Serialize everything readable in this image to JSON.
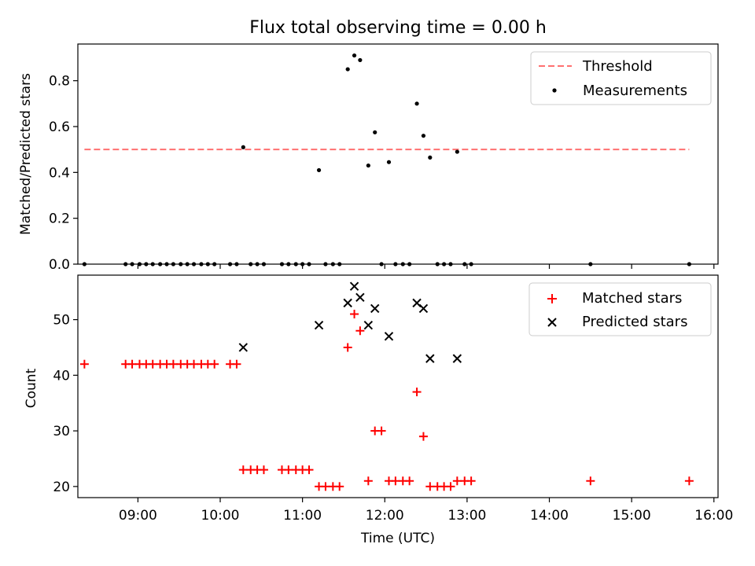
{
  "colors": {
    "threshold": "#ff7070",
    "measurement": "#000000",
    "matched": "#ff0000",
    "predicted": "#000000",
    "axis": "#000000",
    "legend_border": "#cccccc"
  },
  "chart_data": [
    {
      "type": "scatter",
      "title": "Flux total observing time = 0.00 h",
      "xlabel": "",
      "ylabel": "Matched/Predicted stars",
      "xlim": [
        8.27,
        16.05
      ],
      "ylim": [
        0.0,
        0.96
      ],
      "yticks": [
        0.0,
        0.2,
        0.4,
        0.6,
        0.8
      ],
      "ytick_labels": [
        "0.0",
        "0.2",
        "0.4",
        "0.6",
        "0.8"
      ],
      "threshold": {
        "name": "Threshold",
        "y": 0.5,
        "x_range": [
          8.35,
          15.7
        ]
      },
      "series": [
        {
          "name": "Measurements",
          "points": [
            [
              8.35,
              0.0
            ],
            [
              8.85,
              0.0
            ],
            [
              8.93,
              0.0
            ],
            [
              9.02,
              0.0
            ],
            [
              9.1,
              0.0
            ],
            [
              9.18,
              0.0
            ],
            [
              9.27,
              0.0
            ],
            [
              9.35,
              0.0
            ],
            [
              9.43,
              0.0
            ],
            [
              9.52,
              0.0
            ],
            [
              9.6,
              0.0
            ],
            [
              9.68,
              0.0
            ],
            [
              9.77,
              0.0
            ],
            [
              9.85,
              0.0
            ],
            [
              9.93,
              0.0
            ],
            [
              10.12,
              0.0
            ],
            [
              10.2,
              0.0
            ],
            [
              10.28,
              0.51
            ],
            [
              10.37,
              0.0
            ],
            [
              10.45,
              0.0
            ],
            [
              10.53,
              0.0
            ],
            [
              10.75,
              0.0
            ],
            [
              10.83,
              0.0
            ],
            [
              10.92,
              0.0
            ],
            [
              11.0,
              0.0
            ],
            [
              11.08,
              0.0
            ],
            [
              11.2,
              0.41
            ],
            [
              11.28,
              0.0
            ],
            [
              11.37,
              0.0
            ],
            [
              11.45,
              0.0
            ],
            [
              11.55,
              0.85
            ],
            [
              11.63,
              0.91
            ],
            [
              11.7,
              0.89
            ],
            [
              11.8,
              0.43
            ],
            [
              11.88,
              0.575
            ],
            [
              11.96,
              0.0
            ],
            [
              12.05,
              0.445
            ],
            [
              12.13,
              0.0
            ],
            [
              12.22,
              0.0
            ],
            [
              12.3,
              0.0
            ],
            [
              12.39,
              0.7
            ],
            [
              12.47,
              0.56
            ],
            [
              12.55,
              0.465
            ],
            [
              12.64,
              0.0
            ],
            [
              12.72,
              0.0
            ],
            [
              12.8,
              0.0
            ],
            [
              12.88,
              0.49
            ],
            [
              12.97,
              0.0
            ],
            [
              13.05,
              0.0
            ],
            [
              14.5,
              0.0
            ],
            [
              15.7,
              0.0
            ]
          ]
        }
      ],
      "legend": {
        "location": "upper right",
        "entries": [
          "Threshold",
          "Measurements"
        ]
      }
    },
    {
      "type": "scatter",
      "title": "",
      "xlabel": "Time (UTC)",
      "ylabel": "Count",
      "xlim": [
        8.27,
        16.05
      ],
      "ylim": [
        18.0,
        58.0
      ],
      "xticks": [
        9,
        10,
        11,
        12,
        13,
        14,
        15,
        16
      ],
      "xtick_labels": [
        "09:00",
        "10:00",
        "11:00",
        "12:00",
        "13:00",
        "14:00",
        "15:00",
        "16:00"
      ],
      "yticks": [
        20,
        30,
        40,
        50
      ],
      "ytick_labels": [
        "20",
        "30",
        "40",
        "50"
      ],
      "series": [
        {
          "name": "Matched stars",
          "marker": "+",
          "points": [
            [
              8.35,
              42
            ],
            [
              8.85,
              42
            ],
            [
              8.93,
              42
            ],
            [
              9.02,
              42
            ],
            [
              9.1,
              42
            ],
            [
              9.18,
              42
            ],
            [
              9.27,
              42
            ],
            [
              9.35,
              42
            ],
            [
              9.43,
              42
            ],
            [
              9.52,
              42
            ],
            [
              9.6,
              42
            ],
            [
              9.68,
              42
            ],
            [
              9.77,
              42
            ],
            [
              9.85,
              42
            ],
            [
              9.93,
              42
            ],
            [
              10.12,
              42
            ],
            [
              10.2,
              42
            ],
            [
              10.28,
              23
            ],
            [
              10.37,
              23
            ],
            [
              10.45,
              23
            ],
            [
              10.53,
              23
            ],
            [
              10.75,
              23
            ],
            [
              10.83,
              23
            ],
            [
              10.92,
              23
            ],
            [
              11.0,
              23
            ],
            [
              11.08,
              23
            ],
            [
              11.2,
              20
            ],
            [
              11.28,
              20
            ],
            [
              11.37,
              20
            ],
            [
              11.45,
              20
            ],
            [
              11.55,
              45
            ],
            [
              11.63,
              51
            ],
            [
              11.7,
              48
            ],
            [
              11.8,
              21
            ],
            [
              11.88,
              30
            ],
            [
              11.96,
              30
            ],
            [
              12.05,
              21
            ],
            [
              12.13,
              21
            ],
            [
              12.22,
              21
            ],
            [
              12.3,
              21
            ],
            [
              12.39,
              37
            ],
            [
              12.47,
              29
            ],
            [
              12.55,
              20
            ],
            [
              12.64,
              20
            ],
            [
              12.72,
              20
            ],
            [
              12.8,
              20
            ],
            [
              12.88,
              21
            ],
            [
              12.97,
              21
            ],
            [
              13.05,
              21
            ],
            [
              14.5,
              21
            ],
            [
              15.7,
              21
            ]
          ]
        },
        {
          "name": "Predicted stars",
          "marker": "x",
          "points": [
            [
              10.28,
              45
            ],
            [
              11.2,
              49
            ],
            [
              11.55,
              53
            ],
            [
              11.63,
              56
            ],
            [
              11.7,
              54
            ],
            [
              11.8,
              49
            ],
            [
              11.88,
              52
            ],
            [
              12.05,
              47
            ],
            [
              12.39,
              53
            ],
            [
              12.47,
              52
            ],
            [
              12.55,
              43
            ],
            [
              12.88,
              43
            ]
          ]
        }
      ],
      "legend": {
        "location": "upper right",
        "entries": [
          "Matched stars",
          "Predicted stars"
        ]
      }
    }
  ]
}
